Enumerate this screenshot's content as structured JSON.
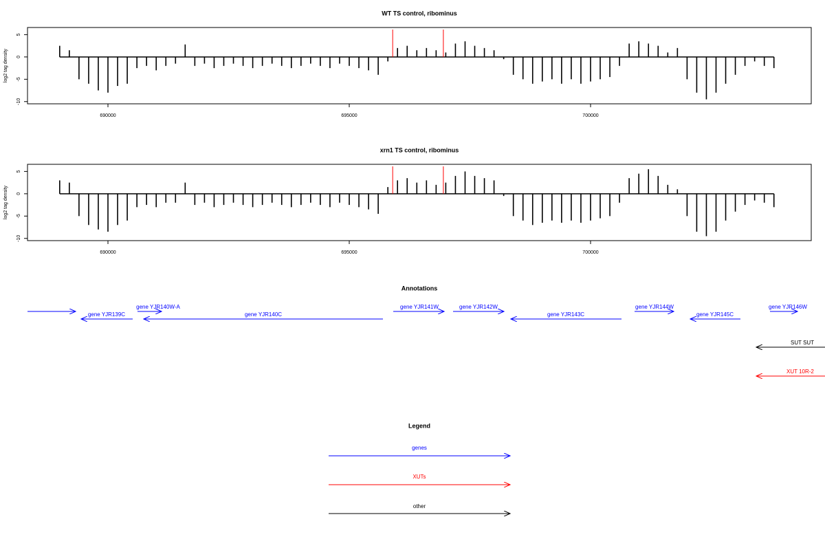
{
  "chart_data": [
    {
      "type": "bar",
      "title": "WT TS control, ribominus",
      "ylabel": "log2 tag density",
      "color": "#000000",
      "x": [
        689000,
        689200,
        689400,
        689600,
        689800,
        690000,
        690200,
        690400,
        690600,
        690800,
        691000,
        691200,
        691400,
        691600,
        691800,
        692000,
        692200,
        692400,
        692600,
        692800,
        693000,
        693200,
        693400,
        693600,
        693800,
        694000,
        694200,
        694400,
        694600,
        694800,
        695000,
        695200,
        695400,
        695600,
        695800,
        696000,
        696200,
        696400,
        696600,
        696800,
        697000,
        697200,
        697400,
        697600,
        697800,
        698000,
        698200,
        698400,
        698600,
        698800,
        699000,
        699200,
        699400,
        699600,
        699800,
        700000,
        700200,
        700400,
        700600,
        700800,
        701000,
        701200,
        701400,
        701600,
        701800,
        702000,
        702200,
        702400,
        702600,
        702800,
        703000,
        703200,
        703400,
        703600,
        703800
      ],
      "values": [
        2.5,
        1.5,
        -5,
        -6,
        -7.5,
        -8,
        -6.5,
        -6,
        -2.5,
        -2,
        -3,
        -2,
        -1.5,
        2.8,
        -2,
        -1.5,
        -2.5,
        -2,
        -1.5,
        -2,
        -2.5,
        -2,
        -1.5,
        -2,
        -2.5,
        -2,
        -1.5,
        -2,
        -2.5,
        -1.5,
        -2,
        -2.5,
        -3,
        -4,
        -1,
        2,
        2.5,
        1.5,
        2,
        1.5,
        1,
        3,
        3.5,
        2.5,
        2,
        1.5,
        -0.5,
        -4,
        -5,
        -6,
        -5.5,
        -5,
        -6,
        -5,
        -6,
        -5.5,
        -5,
        -4.5,
        -2,
        3,
        3.5,
        3,
        2.5,
        1,
        2,
        -5,
        -8,
        -9.5,
        -8,
        -6,
        -4,
        -2,
        -1,
        -2,
        -2.5
      ],
      "highlights": [
        695900,
        696950
      ],
      "highlight_color": "#ff0000",
      "xlim": [
        688333,
        704573
      ],
      "xticks": [
        690000,
        695000,
        700000
      ],
      "ylim": [
        -10.5,
        6.6
      ],
      "yticks": [
        5,
        0,
        -5,
        -10
      ]
    },
    {
      "type": "bar",
      "title": "xrn1 TS control, ribominus",
      "ylabel": "log2 tag density",
      "color": "#000000",
      "x": [
        689000,
        689200,
        689400,
        689600,
        689800,
        690000,
        690200,
        690400,
        690600,
        690800,
        691000,
        691200,
        691400,
        691600,
        691800,
        692000,
        692200,
        692400,
        692600,
        692800,
        693000,
        693200,
        693400,
        693600,
        693800,
        694000,
        694200,
        694400,
        694600,
        694800,
        695000,
        695200,
        695400,
        695600,
        695800,
        696000,
        696200,
        696400,
        696600,
        696800,
        697000,
        697200,
        697400,
        697600,
        697800,
        698000,
        698200,
        698400,
        698600,
        698800,
        699000,
        699200,
        699400,
        699600,
        699800,
        700000,
        700200,
        700400,
        700600,
        700800,
        701000,
        701200,
        701400,
        701600,
        701800,
        702000,
        702200,
        702400,
        702600,
        702800,
        703000,
        703200,
        703400,
        703600,
        703800
      ],
      "values": [
        3,
        2.5,
        -5,
        -7,
        -8,
        -8.5,
        -7,
        -6,
        -3,
        -2.5,
        -3,
        -2,
        -2,
        2.5,
        -2.5,
        -2,
        -3,
        -2.5,
        -2,
        -2.5,
        -3,
        -2.5,
        -2,
        -2.5,
        -3,
        -2.5,
        -2,
        -2.5,
        -3,
        -2,
        -2.5,
        -3,
        -3.5,
        -4.5,
        1.5,
        3,
        3.5,
        2.5,
        3,
        2,
        2.5,
        4,
        5,
        4,
        3.5,
        3,
        -0.5,
        -5,
        -6,
        -7,
        -6.5,
        -6,
        -6.5,
        -6,
        -6.5,
        -6,
        -5.5,
        -5,
        -2,
        3.5,
        4.5,
        5.5,
        4,
        2,
        1,
        -5,
        -8.5,
        -9.5,
        -8.5,
        -6,
        -4,
        -2.5,
        -1.5,
        -2,
        -3
      ],
      "highlights": [
        695900,
        696950
      ],
      "highlight_color": "#ff0000",
      "xlim": [
        688333,
        704573
      ],
      "xticks": [
        690000,
        695000,
        700000
      ],
      "ylim": [
        -10.5,
        6.6
      ],
      "yticks": [
        5,
        0,
        -5,
        -10
      ]
    }
  ],
  "annotations": {
    "title": "Annotations",
    "items": [
      "gene YJR139C",
      "gene YJR140W-A",
      "gene YJR140C",
      "gene YJR141W",
      "gene YJR142W",
      "gene YJR143C",
      "gene YJR144W",
      "gene YJR145C",
      "gene YJR146W",
      "SUT SUT",
      "XUT 10R-2"
    ]
  },
  "legend": {
    "title": "Legend",
    "items": [
      "genes",
      "XUTs",
      "other"
    ]
  }
}
